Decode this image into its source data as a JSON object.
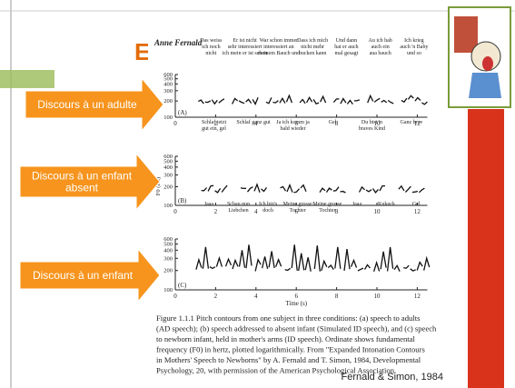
{
  "slide": {
    "title_fragment": "E",
    "arrows": [
      [
        "Discours à un adulte"
      ],
      [
        "Discours à un enfant",
        "absent"
      ],
      [
        "Discours à un enfant"
      ]
    ],
    "figure": {
      "author": "Anne Fernald",
      "y_axis_label": "F0 (Hz)",
      "x_axis_label": "Time (s)",
      "y_ticks": [
        "600",
        "500",
        "400",
        "300",
        "200",
        "100"
      ],
      "x_ticks": [
        "0",
        "2",
        "4",
        "6",
        "8",
        "10",
        "12"
      ],
      "panels": [
        {
          "label": "(A)",
          "phrases": [
            [
              "Das weiss",
              "ich noch",
              "nicht"
            ],
            [
              "Er ist nicht",
              "sehr interessiert",
              "ich mein er ist schon"
            ],
            [
              "War schon immer",
              "interessiert an",
              "meinem Bauch und"
            ],
            [
              "Dass ich mich",
              "nicht mehr",
              "bucken kann"
            ],
            [
              "Und dann",
              "hat er auch",
              "mal gesagt"
            ],
            [
              "Au ich hab",
              "auch ein",
              "aua bauch"
            ],
            [
              "Ich krieg",
              "auch 'n Baby",
              "und so"
            ]
          ]
        },
        {
          "label": "(B)",
          "phrases": [
            [
              "Schlaf jetzt",
              "gut ein, gel"
            ],
            [
              "Schlaf ganz gut"
            ],
            [
              "Ja ich komm ja",
              "bald wieder"
            ],
            [
              "Gel"
            ],
            [
              "Du bist 'n",
              "braves Kind"
            ],
            [
              "Ganz brav"
            ]
          ]
        },
        {
          "label": "(C)",
          "phrases": [
            [
              "Jaaa"
            ],
            [
              "Schau nun",
              "Liebchen"
            ],
            [
              "Ich bin's",
              "doch"
            ],
            [
              "Meine grosse",
              "Tochter"
            ],
            [
              "Meine grosse",
              "Tochter"
            ],
            [
              "Jaaa"
            ],
            [
              "Kukuck"
            ],
            [
              "Gel"
            ]
          ]
        }
      ],
      "caption": [
        "Figure 1.1.1  Pitch contours from one subject in three conditions: (a) speech to adults",
        "(AD speech); (b) speech addressed to absent infant (Simulated ID speech), and (c) speech",
        "to newborn infant, held in mother's arms (ID speech). Ordinate shows fundamental",
        "frequency (F0) in hertz, plotted logarithmically. From \"Expanded Intonation Contours",
        "in Mothers' Speech to Newborns\" by A. Fernald and T. Simon, 1984, Developmental",
        "Psychology, 20, with permission of the American Psychological Association."
      ]
    },
    "citation": "Fernald & Simon, 1984"
  }
}
